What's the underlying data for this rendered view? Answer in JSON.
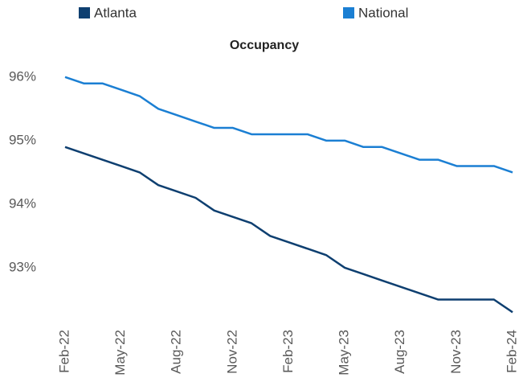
{
  "chart_data": {
    "type": "line",
    "title": "Occupancy",
    "categories": [
      "Feb-22",
      null,
      null,
      "May-22",
      null,
      null,
      "Aug-22",
      null,
      null,
      "Nov-22",
      null,
      null,
      "Feb-23",
      null,
      null,
      "May-23",
      null,
      null,
      "Aug-23",
      null,
      null,
      "Nov-23",
      null,
      null,
      "Feb-24"
    ],
    "series": [
      {
        "name": "Atlanta",
        "color": "#0e3f70",
        "values": [
          94.9,
          94.8,
          94.7,
          94.6,
          94.5,
          94.3,
          94.2,
          94.1,
          93.9,
          93.8,
          93.7,
          93.5,
          93.4,
          93.3,
          93.2,
          93.0,
          92.9,
          92.8,
          92.7,
          92.6,
          92.5,
          92.5,
          92.5,
          92.5,
          92.3
        ]
      },
      {
        "name": "National",
        "color": "#1b7fd3",
        "values": [
          96.0,
          95.9,
          95.9,
          95.8,
          95.7,
          95.5,
          95.4,
          95.3,
          95.2,
          95.2,
          95.1,
          95.1,
          95.1,
          95.1,
          95.0,
          95.0,
          94.9,
          94.9,
          94.8,
          94.7,
          94.7,
          94.6,
          94.6,
          94.6,
          94.5
        ]
      }
    ],
    "ylim": [
      92,
      96.2
    ],
    "yticks": [
      {
        "value": 93,
        "label": "93%"
      },
      {
        "value": 94,
        "label": "94%"
      },
      {
        "value": 95,
        "label": "95%"
      },
      {
        "value": 96,
        "label": "96%"
      }
    ],
    "legend": "top"
  }
}
